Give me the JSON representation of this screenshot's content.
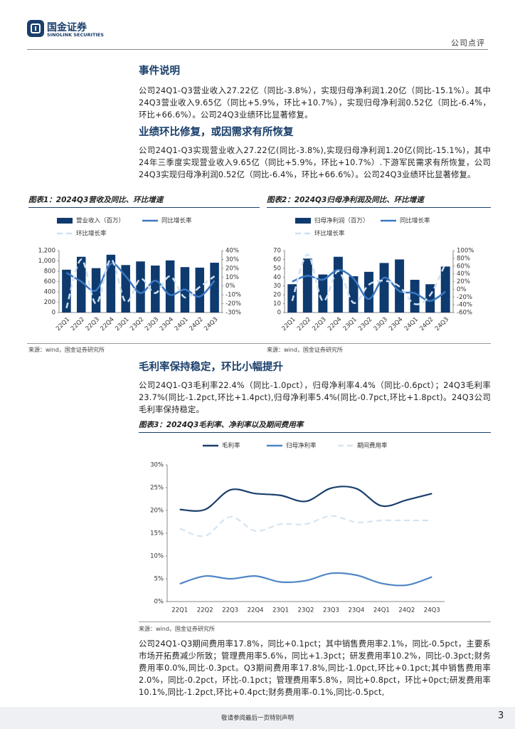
{
  "header": {
    "logo_name": "国金证券",
    "logo_en": "SINOLINK SECURITIES",
    "doc_type": "公司点评"
  },
  "sections": [
    {
      "heading": "事件说明",
      "paragraph": "公司24Q1-Q3营业收入27.22亿（同比-3.8%），实现归母净利润1.20亿（同比-15.1%）。其中24Q3营业收入9.65亿（同比+5.9%，环比+10.7%），实现归母净利润0.52亿（同比-6.4%，环比+66.6%）。公司24Q3业绩环比显著修复。"
    },
    {
      "heading": "业绩环比修复，或因需求有所恢复",
      "paragraph": "公司24Q1-Q3实现营业收入27.22亿(同比-3.8%),实现归母净利润1.20亿(同比-15.1%)，其中24年三季度实现营业收入9.65亿（同比+5.9%，环比+10.7%）.下游军民需求有所恢复，公司24Q3实现归母净利润0.52亿（同比-6.4%，环比+66.6%）。公司24Q3业绩环比显著修复。"
    },
    {
      "heading": "毛利率保持稳定，环比小幅提升",
      "paragraph": "公司24Q1-Q3毛利率22.4%（同比-1.0pct），归母净利率4.4%（同比-0.6pct）；24Q3毛利率23.7%(同比-1.2pct,环比+1.4pct),归母净利率5.4%(同比-0.7pct,环比+1.8pct)。24Q3公司毛利率保持稳定。"
    },
    {
      "paragraph": "公司24Q1-Q3期间费用率17.8%，同比+0.1pct；其中销售费用率2.1%，同比-0.5pct，主要系市场开拓费减少所致；管理费用率5.6%，同比+1.3pct；研发费用率10.2%，同比-0.3pct;财务费用率0.0%,同比-0.3pct。Q3期间费用率17.8%,同比-1.0pct,环比+0.1pct;其中销售费用率2.0%，同比-0.2pct，环比-0.1pct；管理费用率5.8%，同比+0.8pct，环比+0pct;研发费用率10.1%,同比-1.2pct,环比+0.4pct;财务费用率-0.1%,同比-0.5pct,"
    }
  ],
  "footer": {
    "notice": "敬请参阅最后一页特别声明",
    "page": "3"
  },
  "chart_data": [
    {
      "type": "combo",
      "title": "图表1：2024Q3营收及同比、环比增速",
      "source": "来源：wind，国金证券研究所",
      "categories": [
        "22Q1",
        "22Q2",
        "22Q3",
        "22Q4",
        "23Q1",
        "23Q2",
        "23Q3",
        "23Q4",
        "24Q1",
        "24Q2",
        "24Q3"
      ],
      "ylim": [
        0,
        1200
      ],
      "yticks": [
        0,
        200,
        400,
        600,
        800,
        {
          "value": 1000,
          "label": "1,000"
        },
        {
          "value": 1200,
          "label": "1,200"
        }
      ],
      "y2lim": [
        -30,
        40
      ],
      "y2ticks": [
        {
          "value": -30,
          "label": "-30%"
        },
        {
          "value": -20,
          "label": "-20%"
        },
        {
          "value": -10,
          "label": "-10%"
        },
        {
          "value": 0,
          "label": "0%"
        },
        {
          "value": 10,
          "label": "10%"
        },
        {
          "value": 20,
          "label": "20%"
        },
        {
          "value": 30,
          "label": "30%"
        },
        {
          "value": 40,
          "label": "40%"
        }
      ],
      "series": [
        {
          "name": "营业收入（百万）",
          "type": "bar",
          "color": "#0e3a6e",
          "values": [
            830,
            1080,
            860,
            1120,
            920,
            990,
            910,
            1010,
            880,
            870,
            965
          ]
        },
        {
          "name": "同比增长率",
          "type": "line",
          "axis": "y2",
          "color": "#3a78c2",
          "values": [
            15,
            5,
            -5,
            25,
            11,
            -8,
            6,
            -10,
            -4,
            -12,
            6
          ]
        },
        {
          "name": "环比增长率",
          "type": "line",
          "axis": "y2",
          "line_style": "dashed",
          "color": "#cfe0f1",
          "values": [
            -25,
            30,
            -20,
            30,
            -18,
            8,
            -8,
            11,
            -13,
            -1,
            11
          ]
        }
      ]
    },
    {
      "type": "combo",
      "title": "图表2：2024Q3归母净利润及同比、环比增速",
      "source": "来源：wind，国金证券研究所",
      "categories": [
        "22Q1",
        "22Q2",
        "22Q3",
        "22Q4",
        "23Q1",
        "23Q2",
        "23Q3",
        "23Q4",
        "24Q1",
        "24Q2",
        "24Q3"
      ],
      "ylim": [
        0,
        70
      ],
      "yticks": [
        0,
        10,
        20,
        30,
        40,
        50,
        60,
        70
      ],
      "y2lim": [
        -60,
        100
      ],
      "y2ticks": [
        {
          "value": -60,
          "label": "-60%"
        },
        {
          "value": -40,
          "label": "-40%"
        },
        {
          "value": -20,
          "label": "-20%"
        },
        {
          "value": 0,
          "label": "0%"
        },
        {
          "value": 20,
          "label": "20%"
        },
        {
          "value": 40,
          "label": "40%"
        },
        {
          "value": 60,
          "label": "60%"
        },
        {
          "value": 80,
          "label": "80%"
        },
        {
          "value": 100,
          "label": "100%"
        }
      ],
      "series": [
        {
          "name": "归母净利润（百万）",
          "type": "bar",
          "color": "#0e3a6e",
          "values": [
            32,
            61,
            43,
            63,
            41,
            46,
            56,
            60,
            37,
            32,
            52
          ]
        },
        {
          "name": "同比增长率",
          "type": "line",
          "axis": "y2",
          "color": "#3a78c2",
          "values": [
            20,
            35,
            25,
            50,
            28,
            -25,
            30,
            -5,
            -10,
            -30,
            -6
          ]
        },
        {
          "name": "环比增长率",
          "type": "line",
          "axis": "y2",
          "line_style": "dashed",
          "color": "#cfe0f1",
          "values": [
            -30,
            90,
            -30,
            47,
            -35,
            12,
            22,
            7,
            -38,
            -15,
            67
          ]
        }
      ]
    },
    {
      "type": "line",
      "title": "图表3：2024Q3毛利率、净利率以及期间费用率",
      "source": "来源：wind，国金证券研究所",
      "categories": [
        "22Q1",
        "22Q2",
        "22Q3",
        "22Q4",
        "23Q1",
        "23Q2",
        "23Q3",
        "23Q4",
        "24Q1",
        "24Q2",
        "24Q3"
      ],
      "ylim": [
        0,
        30
      ],
      "yticks": [
        {
          "value": 0,
          "label": "0%"
        },
        {
          "value": 5,
          "label": "5%"
        },
        {
          "value": 10,
          "label": "10%"
        },
        {
          "value": 15,
          "label": "15%"
        },
        {
          "value": 20,
          "label": "20%"
        },
        {
          "value": 25,
          "label": "25%"
        },
        {
          "value": 30,
          "label": "30%"
        }
      ],
      "series": [
        {
          "name": "毛利率",
          "type": "line",
          "color": "#1a3f6b",
          "values": [
            20.2,
            20.2,
            24.5,
            23.7,
            23.3,
            22,
            24.9,
            24.8,
            21,
            22.3,
            23.7
          ]
        },
        {
          "name": "归母净利率",
          "type": "line",
          "color": "#4f86c6",
          "values": [
            3.9,
            5.6,
            5.0,
            5.6,
            4.3,
            4.6,
            6.2,
            5.8,
            4.0,
            3.6,
            5.4
          ]
        },
        {
          "name": "期间费用率",
          "type": "line",
          "line_style": "dashed",
          "color": "#d6e4f2",
          "values": [
            16,
            14.4,
            18.6,
            15.5,
            17,
            17,
            18.8,
            17.4,
            17.8,
            17.8,
            17.8
          ]
        }
      ]
    }
  ]
}
